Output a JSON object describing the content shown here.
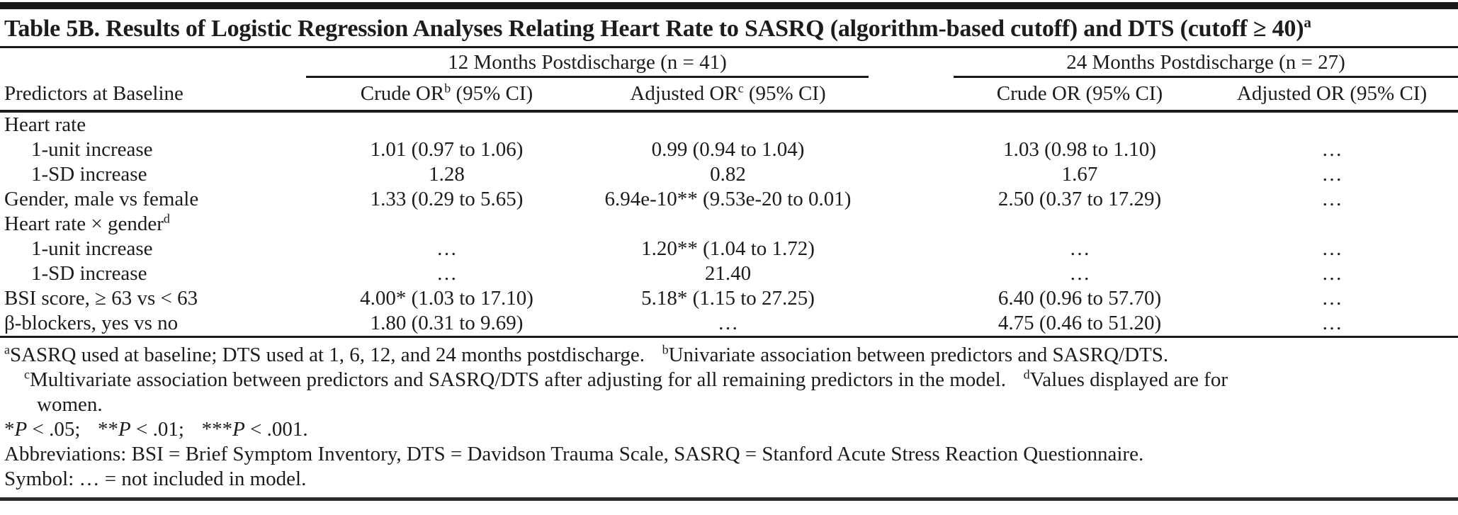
{
  "colors": {
    "background": "#ffffff",
    "text": "#1c1c1c",
    "rule": "#1a1a1a"
  },
  "table": {
    "title_segments": [
      {
        "text": "Table 5B. Results of Logistic Regression Analyses Relating Heart Rate to SASRQ (algorithm-based cutoff) and DTS (cutoff ≥ 40)"
      },
      {
        "text": "a",
        "sup": true
      }
    ],
    "col_groups": [
      {
        "label": "12 Months Postdischarge (n = 41)"
      },
      {
        "label": "24 Months Postdischarge (n = 27)"
      }
    ],
    "columns": [
      {
        "label": [
          {
            "text": "Predictors at Baseline"
          }
        ]
      },
      {
        "label": [
          {
            "text": "Crude OR"
          },
          {
            "text": "b",
            "sup": true
          },
          {
            "text": " (95% CI)"
          }
        ]
      },
      {
        "label": [
          {
            "text": "Adjusted OR"
          },
          {
            "text": "c",
            "sup": true
          },
          {
            "text": " (95% CI)"
          }
        ]
      },
      {
        "label": [
          {
            "text": "Crude OR (95% CI)"
          }
        ]
      },
      {
        "label": [
          {
            "text": "Adjusted OR (95% CI)"
          }
        ]
      }
    ],
    "rows": [
      {
        "indent": 0,
        "label": [
          {
            "text": "Heart rate"
          }
        ],
        "cells": [
          "",
          "",
          "",
          ""
        ]
      },
      {
        "indent": 1,
        "label": [
          {
            "text": "1-unit increase"
          }
        ],
        "cells": [
          "1.01 (0.97 to 1.06)",
          "0.99 (0.94 to 1.04)",
          "1.03 (0.98 to 1.10)",
          "…"
        ]
      },
      {
        "indent": 1,
        "label": [
          {
            "text": "1-SD increase"
          }
        ],
        "cells": [
          "1.28",
          "0.82",
          "1.67",
          "…"
        ]
      },
      {
        "indent": 0,
        "label": [
          {
            "text": "Gender, male vs female"
          }
        ],
        "cells": [
          "1.33 (0.29 to 5.65)",
          "6.94e-10** (9.53e-20 to 0.01)",
          "2.50 (0.37 to 17.29)",
          "…"
        ]
      },
      {
        "indent": 0,
        "label": [
          {
            "text": "Heart rate × gender"
          },
          {
            "text": "d",
            "sup": true
          }
        ],
        "cells": [
          "",
          "",
          "",
          ""
        ]
      },
      {
        "indent": 1,
        "label": [
          {
            "text": "1-unit increase"
          }
        ],
        "cells": [
          "…",
          "1.20** (1.04 to 1.72)",
          "…",
          "…"
        ]
      },
      {
        "indent": 1,
        "label": [
          {
            "text": "1-SD increase"
          }
        ],
        "cells": [
          "…",
          "21.40",
          "…",
          "…"
        ]
      },
      {
        "indent": 0,
        "label": [
          {
            "text": "BSI score, ≥ 63 vs < 63"
          }
        ],
        "cells": [
          "4.00* (1.03 to 17.10)",
          "5.18* (1.15 to 27.25)",
          "6.40 (0.96 to 57.70)",
          "…"
        ]
      },
      {
        "indent": 0,
        "label": [
          {
            "text": "β-blockers, yes vs no"
          }
        ],
        "cells": [
          "1.80 (0.31 to 9.69)",
          "…",
          "4.75 (0.46 to 51.20)",
          "…"
        ]
      }
    ],
    "footnotes": [
      {
        "indent": 0,
        "segments": [
          {
            "text": "a",
            "sup": true
          },
          {
            "text": "SASRQ used at baseline; DTS used at 1, 6, 12, and 24 months postdischarge."
          },
          {
            "gap": true
          },
          {
            "text": "b",
            "sup": true
          },
          {
            "text": "Univariate association between predictors and SASRQ/DTS."
          }
        ]
      },
      {
        "indent": 1,
        "segments": [
          {
            "text": "c",
            "sup": true
          },
          {
            "text": "Multivariate association between predictors and SASRQ/DTS after adjusting for all remaining predictors in the model."
          },
          {
            "gap": true
          },
          {
            "text": "d",
            "sup": true
          },
          {
            "text": "Values displayed are for"
          }
        ]
      },
      {
        "indent": 2,
        "segments": [
          {
            "text": "women."
          }
        ]
      },
      {
        "indent": 0,
        "segments": [
          {
            "text": "*"
          },
          {
            "text": "P",
            "italic": true
          },
          {
            "text": " < .05;"
          },
          {
            "gap": true
          },
          {
            "text": "**"
          },
          {
            "text": "P",
            "italic": true
          },
          {
            "text": " < .01;"
          },
          {
            "gap": true
          },
          {
            "text": "***"
          },
          {
            "text": "P",
            "italic": true
          },
          {
            "text": " < .001."
          }
        ]
      },
      {
        "indent": 0,
        "segments": [
          {
            "text": "Abbreviations: BSI = Brief Symptom Inventory, DTS = Davidson Trauma Scale, SASRQ = Stanford Acute Stress Reaction Questionnaire."
          }
        ]
      },
      {
        "indent": 0,
        "segments": [
          {
            "text": "Symbol: … = not included in model."
          }
        ]
      }
    ]
  }
}
